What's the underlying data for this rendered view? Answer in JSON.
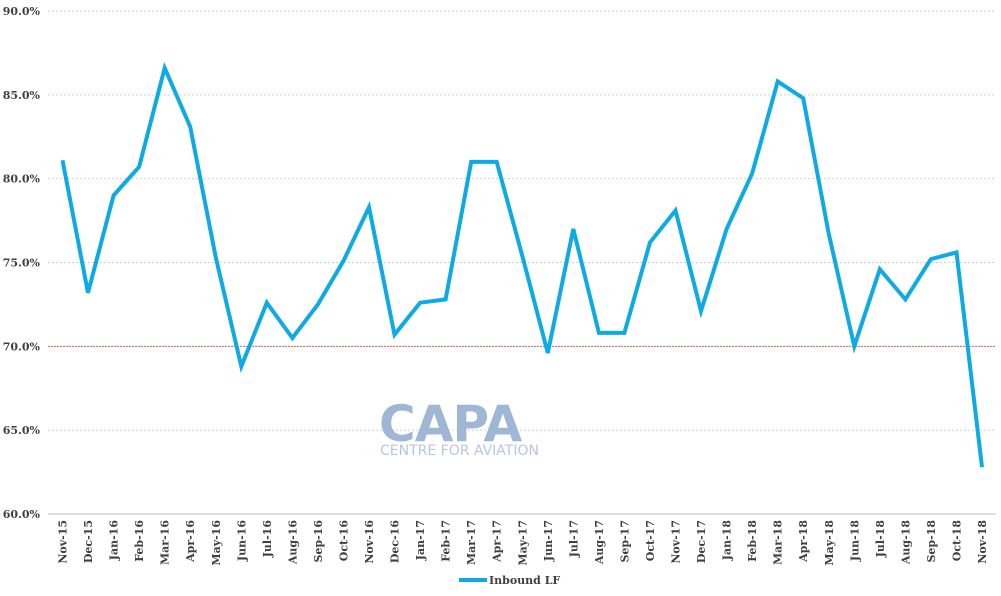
{
  "chart_data": {
    "type": "line",
    "title": "",
    "xlabel": "",
    "ylabel": "",
    "ylim": [
      60,
      90
    ],
    "y_ticks": [
      "60.0%",
      "65.0%",
      "70.0%",
      "75.0%",
      "80.0%",
      "85.0%",
      "90.0%"
    ],
    "y_tick_values": [
      60,
      65,
      70,
      75,
      80,
      85,
      90
    ],
    "grid": true,
    "reference_line": {
      "value": 70,
      "color": "#e06666"
    },
    "legend_position": "bottom",
    "categories": [
      "Nov-15",
      "Dec-15",
      "Jan-16",
      "Feb-16",
      "Mar-16",
      "Apr-16",
      "May-16",
      "Jun-16",
      "Jul-16",
      "Aug-16",
      "Sep-16",
      "Oct-16",
      "Nov-16",
      "Dec-16",
      "Jan-17",
      "Feb-17",
      "Mar-17",
      "Apr-17",
      "May-17",
      "Jun-17",
      "Jul-17",
      "Aug-17",
      "Sep-17",
      "Oct-17",
      "Nov-17",
      "Dec-17",
      "Jan-18",
      "Feb-18",
      "Mar-18",
      "Apr-18",
      "May-18",
      "Jun-18",
      "Jul-18",
      "Aug-18",
      "Sep-18",
      "Oct-18",
      "Nov-18"
    ],
    "series": [
      {
        "name": "Inbound LF",
        "color": "#0eaae6",
        "values": [
          81.1,
          73.2,
          79.0,
          80.7,
          86.6,
          83.1,
          75.3,
          68.8,
          72.6,
          70.5,
          72.5,
          75.1,
          78.3,
          70.7,
          72.6,
          72.8,
          81.0,
          81.0,
          75.4,
          69.6,
          77.0,
          70.8,
          70.8,
          76.2,
          78.1,
          72.1,
          77.0,
          80.3,
          85.8,
          84.8,
          76.7,
          70.0,
          74.6,
          72.8,
          75.2,
          75.6,
          62.8
        ]
      }
    ]
  },
  "watermark": {
    "logo_text": "CAPA",
    "tagline": "CENTRE FOR AVIATION"
  }
}
